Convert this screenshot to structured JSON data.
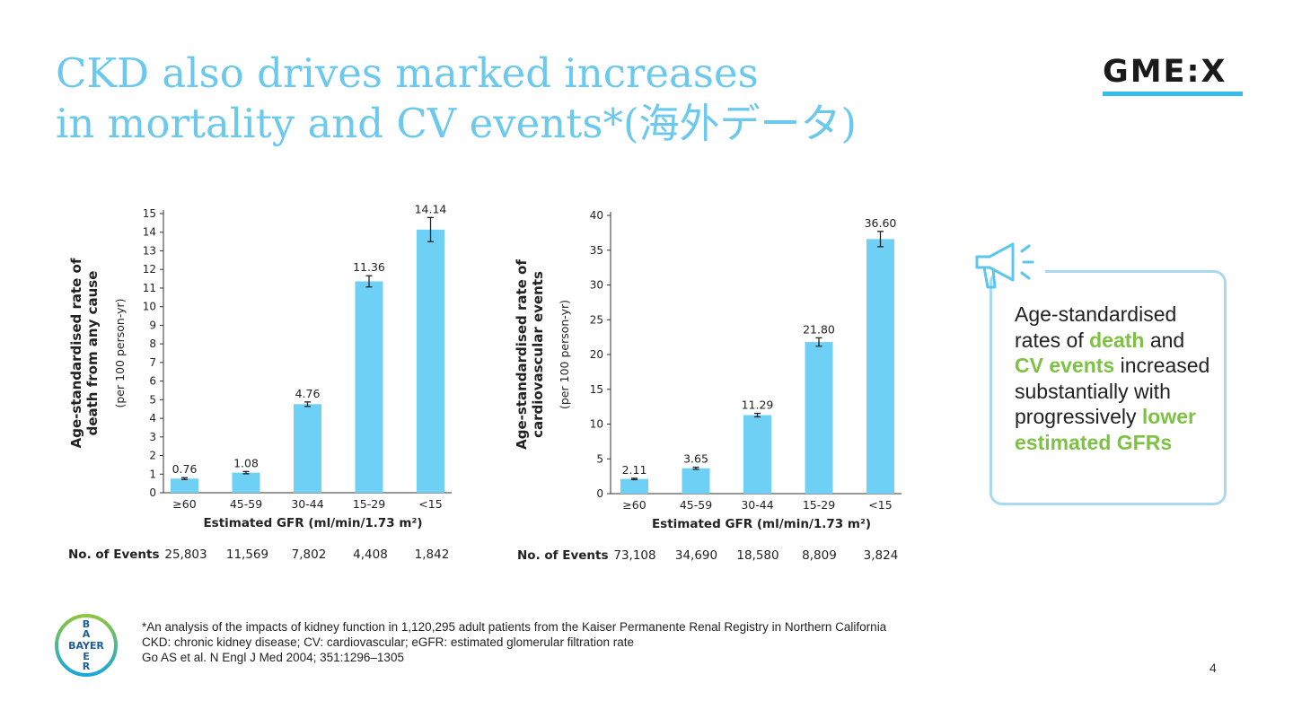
{
  "title": {
    "line1": "CKD also drives marked increases",
    "line2": "in mortality and CV events*(海外データ)"
  },
  "logo": {
    "text": "GME:X"
  },
  "colors": {
    "accent": "#6cc9ee",
    "bar": "#6fd0f6",
    "highlight": "#7dc243"
  },
  "chart_data": [
    {
      "type": "bar",
      "ylabel": "Age-standardised rate of death from any cause",
      "ylabel_lines": [
        "Age-standardised rate of",
        "death from any cause"
      ],
      "ylabel_sub": "(per 100 person-yr)",
      "xlabel": "Estimated GFR (ml/min/1.73 m²)",
      "categories": [
        "≥60",
        "45-59",
        "30-44",
        "15-29",
        "<15"
      ],
      "values": [
        0.76,
        1.08,
        4.76,
        11.36,
        14.14
      ],
      "value_labels": [
        "0.76",
        "1.08",
        "4.76",
        "11.36",
        "14.14"
      ],
      "errors": [
        0.05,
        0.06,
        0.12,
        0.3,
        0.65
      ],
      "ylim": [
        0,
        15
      ],
      "yticks": [
        0,
        1,
        2,
        3,
        4,
        5,
        6,
        7,
        8,
        9,
        10,
        11,
        12,
        13,
        14,
        15
      ],
      "events_label": "No. of Events",
      "events": [
        "25,803",
        "11,569",
        "7,802",
        "4,408",
        "1,842"
      ]
    },
    {
      "type": "bar",
      "ylabel": "Age-standardised rate of cardiovascular events",
      "ylabel_lines": [
        "Age-standardised rate of",
        "cardiovascular events"
      ],
      "ylabel_sub": "(per 100 person-yr)",
      "xlabel": "Estimated GFR (ml/min/1.73 m²)",
      "categories": [
        "≥60",
        "45-59",
        "30-44",
        "15-29",
        "<15"
      ],
      "values": [
        2.11,
        3.65,
        11.29,
        21.8,
        36.6
      ],
      "value_labels": [
        "2.11",
        "3.65",
        "11.29",
        "21.80",
        "36.60"
      ],
      "errors": [
        0.1,
        0.15,
        0.25,
        0.6,
        1.1
      ],
      "ylim": [
        0,
        40
      ],
      "yticks": [
        0,
        5,
        10,
        15,
        20,
        25,
        30,
        35,
        40
      ],
      "events_label": "No. of Events",
      "events": [
        "73,108",
        "34,690",
        "18,580",
        "8,809",
        "3,824"
      ]
    }
  ],
  "callout": {
    "t1": "Age-standardised rates of ",
    "h1": "death",
    "t2": " and ",
    "h2": "CV events",
    "t3": " increased substantially with progressively ",
    "h3": "lower estimated GFRs"
  },
  "footnotes": [
    "*An analysis of the impacts of kidney function in 1,120,295 adult patients from the Kaiser Permanente Renal Registry in Northern California",
    "CKD: chronic kidney disease; CV: cardiovascular; eGFR: estimated glomerular filtration rate",
    "Go AS et al. N Engl J Med 2004; 351:1296–1305"
  ],
  "bayer": {
    "letters": [
      "B",
      "A",
      "Y",
      "E",
      "R"
    ],
    "horizontal": "BAYER"
  },
  "page_number": "4"
}
